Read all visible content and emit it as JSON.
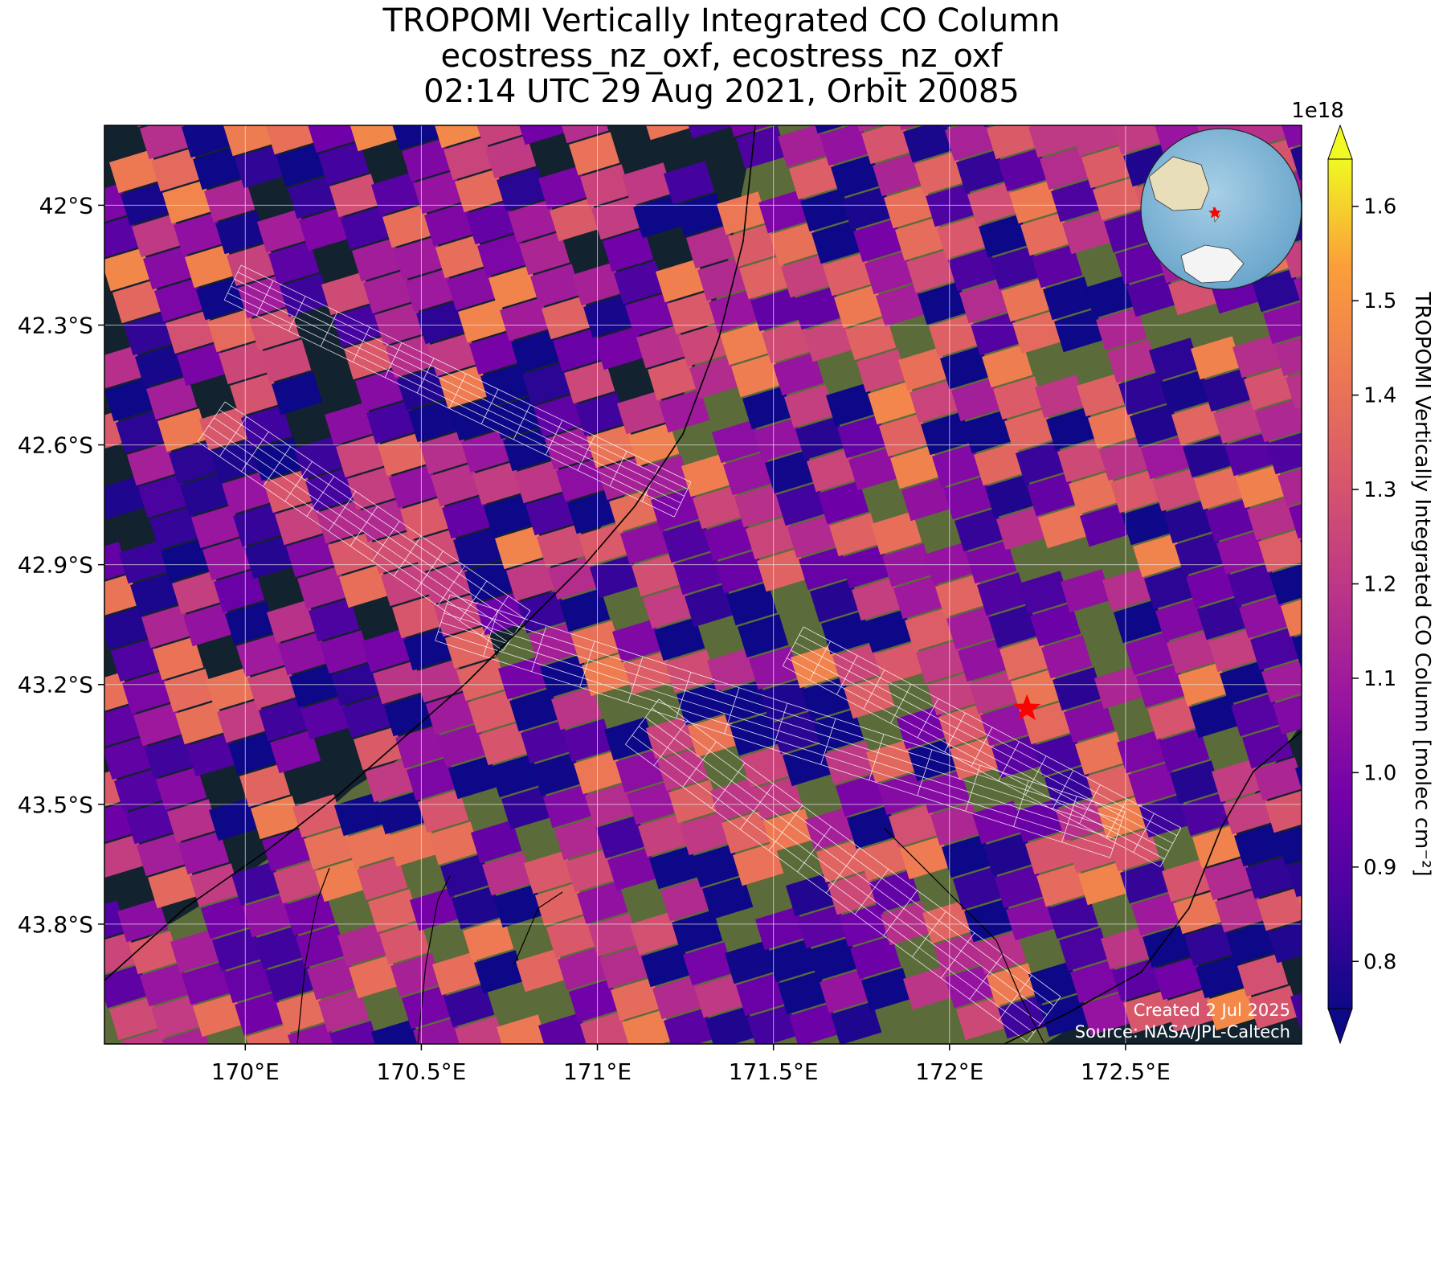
{
  "title": {
    "line1": "TROPOMI Vertically Integrated CO Column",
    "line2": "ecostress_nz_oxf, ecostress_nz_oxf",
    "line3": "02:14 UTC 29 Aug 2021, Orbit 20085"
  },
  "map": {
    "lon_range": [
      169.6,
      173.0
    ],
    "lat_range": [
      -44.1,
      -41.8
    ],
    "x_ticks": [
      "170°E",
      "170.5°E",
      "171°E",
      "171.5°E",
      "172°E",
      "172.5°E"
    ],
    "x_tick_values": [
      170.0,
      170.5,
      171.0,
      171.5,
      172.0,
      172.5
    ],
    "y_ticks": [
      "42°S",
      "42.3°S",
      "42.6°S",
      "42.9°S",
      "43.2°S",
      "43.5°S",
      "43.8°S"
    ],
    "y_tick_values": [
      -42.0,
      -42.3,
      -42.6,
      -42.9,
      -43.2,
      -43.5,
      -43.8
    ],
    "gridlines": true,
    "marker": {
      "lon": 172.22,
      "lat": -43.26,
      "color": "#ff0000",
      "icon": "star-icon"
    },
    "credit_line1": "Created 2 Jul 2025",
    "credit_line2": "Source: NASA/JPL-Caltech",
    "inset": "globe-locator"
  },
  "colorbar": {
    "label": "TROPOMI Vertically Integrated CO Column [molec cm⁻²]",
    "multiplier": "1e18",
    "range": [
      0.75,
      1.65
    ],
    "ticks": [
      "0.8",
      "0.9",
      "1.0",
      "1.1",
      "1.2",
      "1.3",
      "1.4",
      "1.5",
      "1.6"
    ],
    "tick_values": [
      0.8,
      0.9,
      1.0,
      1.1,
      1.2,
      1.3,
      1.4,
      1.5,
      1.6
    ],
    "colormap": "plasma",
    "extend": "both"
  }
}
